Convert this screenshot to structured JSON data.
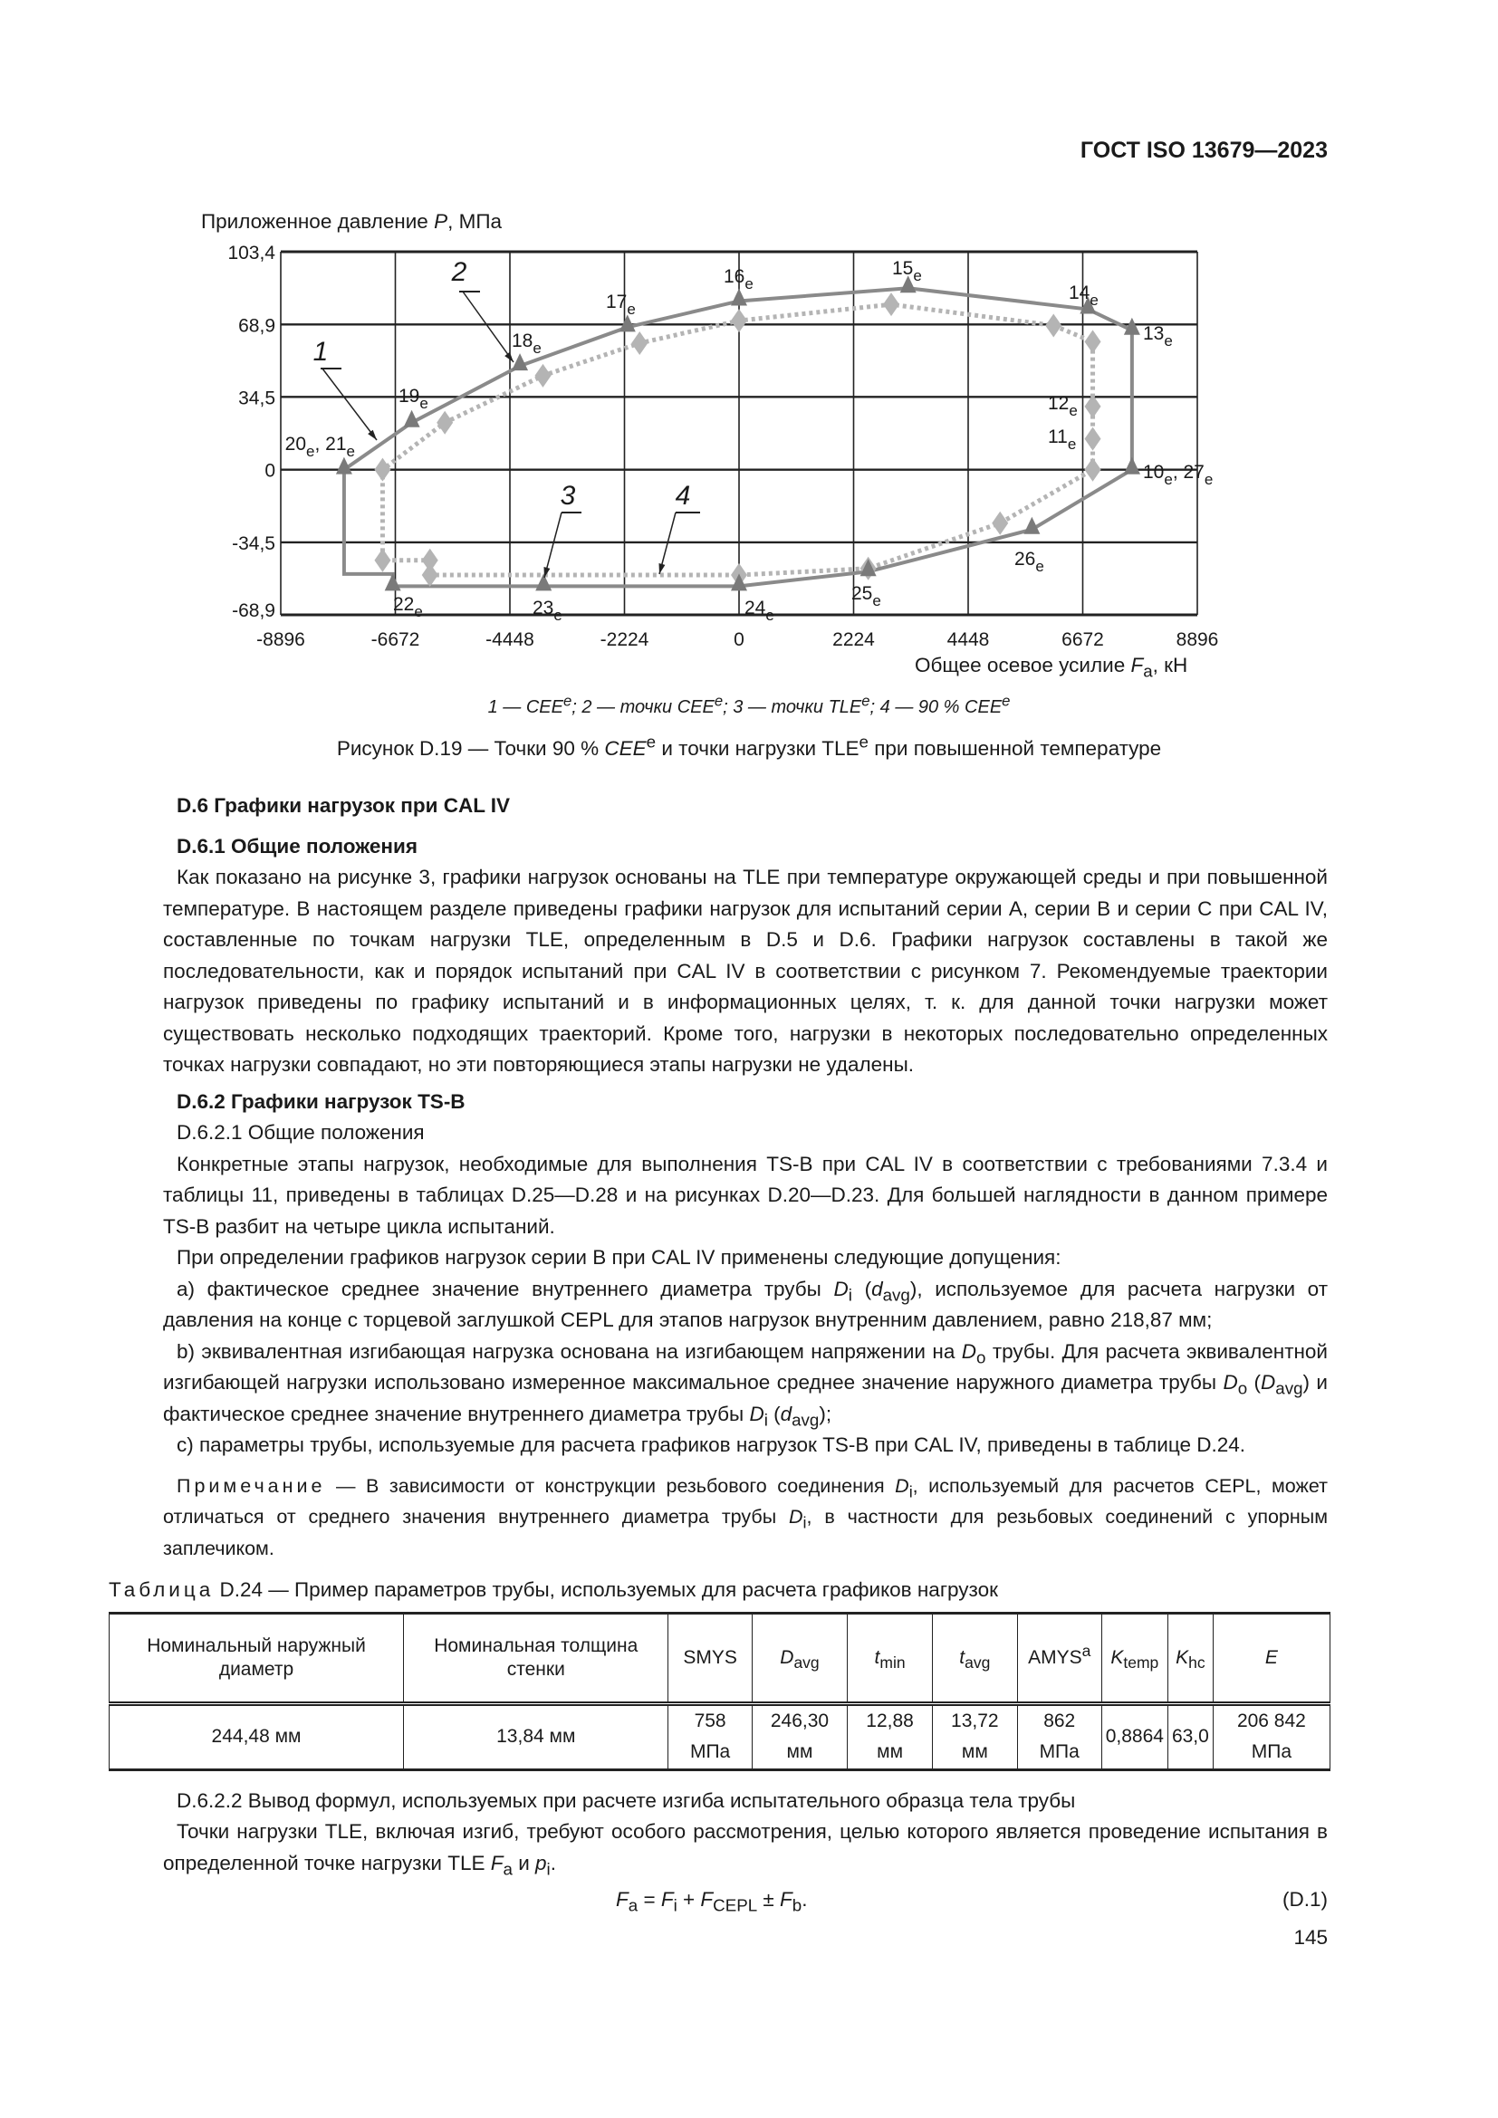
{
  "header": {
    "doc_id": "ГОСТ ISO 13679—2023"
  },
  "chart_data": {
    "type": "line",
    "ylabel": "Приложенное давление P, МПа",
    "xlabel": "Общее осевое усилие Fa, кН",
    "xlim": [
      -8896,
      8896
    ],
    "ylim": [
      -68.9,
      103.4
    ],
    "x_ticks": [
      "-8896",
      "-6672",
      "-4448",
      "-2224",
      "0",
      "2224",
      "4448",
      "6672",
      "8896"
    ],
    "y_ticks": [
      "103,4",
      "68,9",
      "34,5",
      "0",
      "-34,5",
      "-68,9"
    ],
    "grid": true,
    "series": [
      {
        "name": "1 — CEE",
        "style": "solid",
        "color": "#8a8a8a",
        "points": [
          [
            -7667,
            0
          ],
          [
            -6354,
            22.3
          ],
          [
            -4254,
            49.2
          ],
          [
            -2166,
            67.6
          ],
          [
            0,
            80
          ],
          [
            3282,
            86.1
          ],
          [
            6774,
            76.1
          ],
          [
            7628,
            66.1
          ],
          [
            7628,
            0
          ],
          [
            5685,
            -28.4
          ],
          [
            2508,
            -48.4
          ],
          [
            0,
            -55.3
          ],
          [
            -3794,
            -55.3
          ],
          [
            -6722,
            -55.3
          ],
          [
            -6722,
            -49.5
          ],
          [
            -7667,
            -49.5
          ],
          [
            -7667,
            0
          ]
        ]
      },
      {
        "name": "2 — точки CEE",
        "marker": "triangle",
        "color": "#7a7a7a",
        "points": [
          [
            7628,
            0
          ],
          [
            7628,
            66.1
          ],
          [
            6774,
            76.1
          ],
          [
            3282,
            86.1
          ],
          [
            0,
            80
          ],
          [
            -2166,
            67.6
          ],
          [
            -4254,
            49.2
          ],
          [
            -6354,
            22.3
          ],
          [
            -7667,
            0
          ]
        ]
      },
      {
        "name": "3 — точки TLE",
        "marker": "triangle",
        "color": "#7a7a7a",
        "points": [
          [
            -6722,
            -55.3
          ],
          [
            -3794,
            -55.3
          ],
          [
            0,
            -55.3
          ],
          [
            2508,
            -48.4
          ],
          [
            5685,
            -28.4
          ],
          [
            7628,
            0
          ]
        ]
      },
      {
        "name": "4 — 90 % CEE",
        "style": "dotted",
        "marker": "diamond",
        "color": "#b4b4b4",
        "points": [
          [
            6866,
            0
          ],
          [
            6866,
            14.6
          ],
          [
            6866,
            30
          ],
          [
            6866,
            60.7
          ],
          [
            6105,
            68.4
          ],
          [
            2954,
            78.4
          ],
          [
            0,
            70.7
          ],
          [
            -1930,
            60
          ],
          [
            -3807,
            44.6
          ],
          [
            -5711,
            22.3
          ],
          [
            -6919,
            0
          ],
          [
            -6919,
            -43
          ],
          [
            -6000,
            -43
          ],
          [
            -6000,
            -50
          ],
          [
            0,
            -50
          ],
          [
            2508,
            -46.9
          ],
          [
            5067,
            -25.4
          ],
          [
            6866,
            0
          ]
        ]
      }
    ],
    "point_labels": [
      {
        "n": "20",
        "s": "e",
        "n2": "21",
        "s2": "e"
      },
      {
        "n": "19",
        "s": "e"
      },
      {
        "n": "18",
        "s": "e"
      },
      {
        "n": "17",
        "s": "e"
      },
      {
        "n": "16",
        "s": "e"
      },
      {
        "n": "15",
        "s": "e"
      },
      {
        "n": "14",
        "s": "e"
      },
      {
        "n": "13",
        "s": "e"
      },
      {
        "n": "12",
        "s": "e"
      },
      {
        "n": "11",
        "s": "e"
      },
      {
        "n": "10",
        "s": "e",
        "n2": "27",
        "s2": "e"
      },
      {
        "n": "26",
        "s": "e"
      },
      {
        "n": "25",
        "s": "e"
      },
      {
        "n": "24",
        "s": "e"
      },
      {
        "n": "23",
        "s": "e"
      },
      {
        "n": "22",
        "s": "e"
      }
    ],
    "callouts": [
      "1",
      "2",
      "3",
      "4"
    ]
  },
  "figure": {
    "legend": [
      {
        "t": "1 — "
      },
      {
        "t": "CEE",
        "i": 1
      },
      {
        "t": "e",
        "sup": 1
      },
      {
        "t": "; 2 — точки "
      },
      {
        "t": "CEE",
        "i": 1
      },
      {
        "t": "e",
        "sup": 1
      },
      {
        "t": "; 3 — точки TLE"
      },
      {
        "t": "e",
        "sup": 1
      },
      {
        "t": "; 4 — 90 % "
      },
      {
        "t": "CEE",
        "i": 1
      },
      {
        "t": "e",
        "sup": 1
      }
    ],
    "caption": [
      {
        "t": "Рисунок D.19 — Точки 90 % "
      },
      {
        "t": "CEE",
        "i": 1
      },
      {
        "t": "e",
        "sup": 1
      },
      {
        "t": " и точки нагрузки TLE"
      },
      {
        "t": "e",
        "sup": 1
      },
      {
        "t": " при повышенной температуре"
      }
    ]
  },
  "sections": {
    "d6": "D.6 Графики нагрузок при CAL IV",
    "d61": "D.6.1 Общие положения",
    "p1": [
      {
        "t": "Как показано на рисунке 3, графики нагрузок основаны на TLE при температуре окружающей среды и при повышенной температуре. В настоящем разделе приведены графики нагрузок для испытаний серии А, серии В и серии С при CAL IV, составленные по точкам нагрузки TLE, определенным в D.5 и D.6. Графики нагрузок составлены в такой же последовательности, как и порядок испытаний при CAL IV в соответствии с рисунком 7. Рекомендуемые траектории нагрузок приведены по графику испытаний и в информационных целях, т. к. для данной точки нагрузки может существовать несколько подходящих траекторий. Кроме того, нагрузки в некоторых последовательно определенных точках нагрузки совпадают, но эти повторяющиеся этапы нагрузки не удалены."
      }
    ],
    "d62": "D.6.2 Графики нагрузок TS-B",
    "d621": "D.6.2.1 Общие положения",
    "p2": [
      {
        "t": "Конкретные этапы нагрузок, необходимые для выполнения TS-B при CAL IV в соответствии с требованиями 7.3.4 и таблицы 11, приведены в таблицах D.25—D.28 и на рисунках D.20—D.23. Для большей наглядности в данном примере TS-B разбит на четыре цикла испытаний."
      }
    ],
    "p3": [
      {
        "t": "При определении графиков нагрузок серии В при CAL IV применены следующие допущения:"
      }
    ],
    "pa": [
      {
        "t": "а) фактическое среднее значение внутреннего диаметра трубы "
      },
      {
        "t": "D",
        "i": 1
      },
      {
        "t": "i",
        "sub": 1
      },
      {
        "t": " ("
      },
      {
        "t": "d",
        "i": 1
      },
      {
        "t": "avg",
        "sub": 1
      },
      {
        "t": "), используемое для расчета нагрузки от давления на конце с торцевой заглушкой CEPL для этапов нагрузок внутренним давлением, равно 218,87 мм;"
      }
    ],
    "pb": [
      {
        "t": "b) эквивалентная изгибающая нагрузка основана на изгибающем напряжении на "
      },
      {
        "t": "D",
        "i": 1
      },
      {
        "t": "o",
        "sub": 1
      },
      {
        "t": " трубы. Для расчета эквивалентной изгибающей нагрузки использовано измеренное максимальное среднее значение наружного диаметра трубы "
      },
      {
        "t": "D",
        "i": 1
      },
      {
        "t": "o",
        "sub": 1
      },
      {
        "t": " ("
      },
      {
        "t": "D",
        "i": 1
      },
      {
        "t": "avg",
        "sub": 1
      },
      {
        "t": ") и фактическое среднее значение внутреннего диаметра трубы "
      },
      {
        "t": "D",
        "i": 1
      },
      {
        "t": "i",
        "sub": 1
      },
      {
        "t": " ("
      },
      {
        "t": "d",
        "i": 1
      },
      {
        "t": "avg",
        "sub": 1
      },
      {
        "t": ");"
      }
    ],
    "pc": [
      {
        "t": "с) параметры трубы, используемые для расчета графиков нагрузок TS-B при CAL IV, приведены в таблице D.24."
      }
    ],
    "note": [
      {
        "t": "Примечание",
        "sp": 1
      },
      {
        "t": " — В зависимости от конструкции резьбового соединения "
      },
      {
        "t": "D",
        "i": 1
      },
      {
        "t": "i",
        "sub": 1
      },
      {
        "t": ", используемый для расчетов CEPL, может отличаться от среднего значения внутреннего диаметра трубы "
      },
      {
        "t": "D",
        "i": 1
      },
      {
        "t": "i",
        "sub": 1
      },
      {
        "t": ", в частности для резьбовых соединений с упорным заплечиком."
      }
    ],
    "table_caption": [
      {
        "t": "Таблица",
        "sp": 1
      },
      {
        "t": " D.24 — Пример параметров трубы, используемых для расчета графиков нагрузок"
      }
    ],
    "d622": [
      {
        "t": "D.6.2.2 Вывод формул, используемых при расчете изгиба испытательного образца тела трубы"
      }
    ],
    "p4": [
      {
        "t": "Точки нагрузки TLE, включая изгиб, требуют особого рассмотрения, целью которого является проведение испытания в определенной точке нагрузки TLE "
      },
      {
        "t": "F",
        "i": 1
      },
      {
        "t": "a",
        "sub": 1
      },
      {
        "t": " и "
      },
      {
        "t": "p",
        "i": 1
      },
      {
        "t": "i",
        "sub": 1
      },
      {
        "t": "."
      }
    ],
    "formula": [
      {
        "t": "F",
        "i": 1
      },
      {
        "t": "a",
        "sub": 1
      },
      {
        "t": " = "
      },
      {
        "t": "F",
        "i": 1
      },
      {
        "t": "i",
        "sub": 1
      },
      {
        "t": " + "
      },
      {
        "t": "F",
        "i": 1
      },
      {
        "t": "CEPL",
        "sub": 1
      },
      {
        "t": " ± "
      },
      {
        "t": "F",
        "i": 1
      },
      {
        "t": "b",
        "sub": 1
      },
      {
        "t": "."
      }
    ],
    "formula_no": "(D.1)"
  },
  "table": {
    "headers": [
      [
        {
          "t": "Номинальный наружный диаметр"
        }
      ],
      [
        {
          "t": "Номинальная толщина стенки"
        }
      ],
      [
        {
          "t": "SMYS"
        }
      ],
      [
        {
          "t": "D",
          "i": 1
        },
        {
          "t": "avg",
          "sub": 1
        }
      ],
      [
        {
          "t": "t",
          "i": 1
        },
        {
          "t": "min",
          "sub": 1
        }
      ],
      [
        {
          "t": "t",
          "i": 1
        },
        {
          "t": "avg",
          "sub": 1
        }
      ],
      [
        {
          "t": "AMYS"
        },
        {
          "t": "a",
          "sup": 1
        }
      ],
      [
        {
          "t": "K",
          "i": 1
        },
        {
          "t": "temp",
          "sub": 1
        }
      ],
      [
        {
          "t": "K",
          "i": 1
        },
        {
          "t": "hc",
          "sub": 1
        }
      ],
      [
        {
          "t": "E",
          "i": 1
        }
      ]
    ],
    "row": [
      "244,48 мм",
      "13,84 мм",
      "758 МПа",
      "246,30 мм",
      "12,88 мм",
      "13,72 мм",
      "862 МПа",
      "0,8864",
      "63,0",
      "206 842 МПа"
    ]
  },
  "page_number": "145"
}
